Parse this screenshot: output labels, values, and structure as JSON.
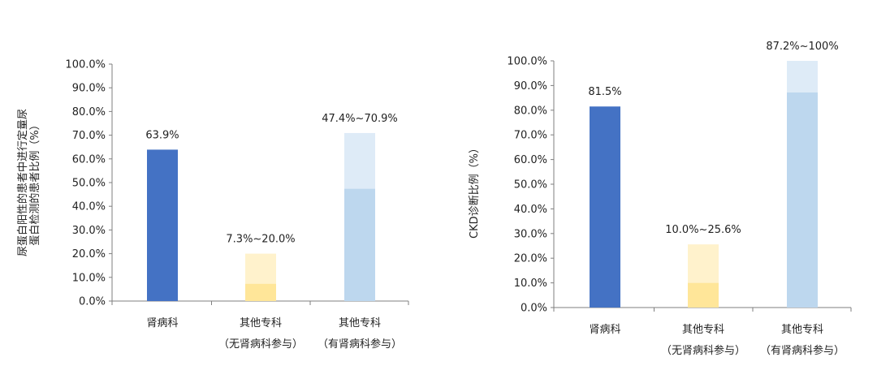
{
  "chart_data": [
    {
      "type": "bar",
      "ylabel_lines": [
        "尿蛋白阳性的患者中进行定量尿",
        "蛋白检测的患者比例（%）"
      ],
      "ylim": [
        0,
        100
      ],
      "yticks": [
        "0.0%",
        "10.0%",
        "20.0%",
        "30.0%",
        "40.0%",
        "50.0%",
        "60.0%",
        "70.0%",
        "80.0%",
        "90.0%",
        "100.0%"
      ],
      "categories": [
        {
          "lines": [
            "肾病科"
          ]
        },
        {
          "lines": [
            "其他专科",
            "（无肾病科参与）"
          ]
        },
        {
          "lines": [
            "其他专科",
            "（有肾病科参与）"
          ]
        }
      ],
      "bars": [
        {
          "low": 63.9,
          "high": 63.9,
          "label": "63.9%",
          "color_low": "#4472c4",
          "color_high": "#4472c4"
        },
        {
          "low": 7.3,
          "high": 20.0,
          "label": "7.3%~20.0%",
          "color_low": "#ffe699",
          "color_high": "#fff2cc"
        },
        {
          "low": 47.4,
          "high": 70.9,
          "label": "47.4%~70.9%",
          "color_low": "#bdd7ee",
          "color_high": "#deebf7"
        }
      ]
    },
    {
      "type": "bar",
      "ylabel_lines": [
        "CKD诊断比例（%）"
      ],
      "ylim": [
        0,
        100
      ],
      "yticks": [
        "0.0%",
        "10.0%",
        "20.0%",
        "30.0%",
        "40.0%",
        "50.0%",
        "60.0%",
        "70.0%",
        "80.0%",
        "90.0%",
        "100.0%"
      ],
      "categories": [
        {
          "lines": [
            "肾病科"
          ]
        },
        {
          "lines": [
            "其他专科",
            "（无肾病科参与）"
          ]
        },
        {
          "lines": [
            "其他专科",
            "（有肾病科参与）"
          ]
        }
      ],
      "bars": [
        {
          "low": 81.5,
          "high": 81.5,
          "label": "81.5%",
          "color_low": "#4472c4",
          "color_high": "#4472c4"
        },
        {
          "low": 10.0,
          "high": 25.6,
          "label": "10.0%~25.6%",
          "color_low": "#ffe699",
          "color_high": "#fff2cc"
        },
        {
          "low": 87.2,
          "high": 100,
          "label": "87.2%~100%",
          "color_low": "#bdd7ee",
          "color_high": "#deebf7"
        }
      ]
    }
  ]
}
